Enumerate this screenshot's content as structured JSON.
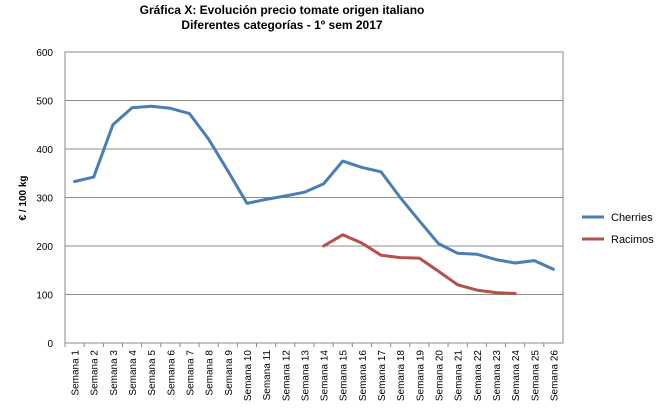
{
  "chart_data": {
    "type": "line",
    "title": "Gráfica X: Evolución precio tomate origen italiano",
    "subtitle": "Diferentes categorías - 1º sem 2017",
    "xlabel": "",
    "ylabel": "€ / 100 kg",
    "ylim": [
      0,
      600
    ],
    "yticks": [
      0,
      100,
      200,
      300,
      400,
      500,
      600
    ],
    "grid": true,
    "legend_position": "right",
    "categories": [
      "Semana 1",
      "Semana 2",
      "Semana 3",
      "Semana 4",
      "Semana 5",
      "Semana 6",
      "Semana 7",
      "Semana 8",
      "Semana 9",
      "Semana 10",
      "Semana 11",
      "Semana 12",
      "Semana 13",
      "Semana 14",
      "Semana 15",
      "Semana 16",
      "Semana 17",
      "Semana 18",
      "Semana 19",
      "Semana 20",
      "Semana 21",
      "Semana 22",
      "Semana 23",
      "Semana 24",
      "Semana 25",
      "Semana 26"
    ],
    "series": [
      {
        "name": "Cherries",
        "color": "#4a7eb5",
        "values": [
          333,
          342,
          450,
          485,
          488,
          484,
          473,
          420,
          355,
          288,
          296,
          303,
          311,
          328,
          375,
          362,
          353,
          300,
          252,
          205,
          185,
          183,
          172,
          165,
          170,
          152
        ]
      },
      {
        "name": "Racimos",
        "color": "#b5504a",
        "values": [
          null,
          null,
          null,
          null,
          null,
          null,
          null,
          null,
          null,
          null,
          null,
          null,
          null,
          200,
          223,
          206,
          181,
          176,
          175,
          148,
          120,
          109,
          104,
          102,
          null,
          null
        ]
      }
    ]
  }
}
